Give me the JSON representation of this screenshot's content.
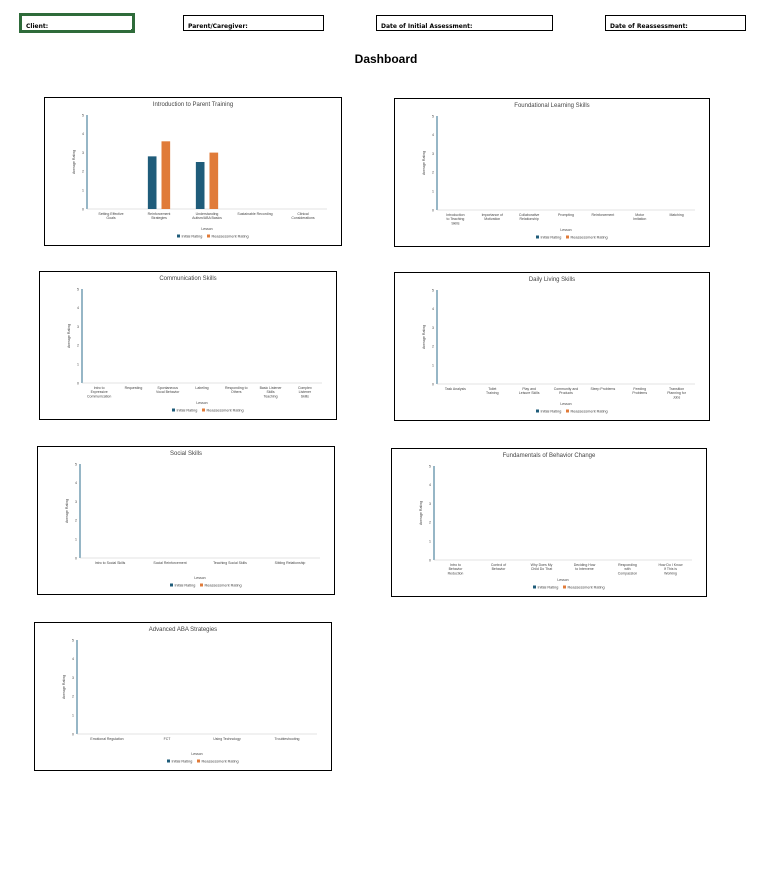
{
  "header": {
    "client_label": "Client:",
    "parent_label": "Parent/Caregiver:",
    "initial_label": "Date of Initial Assessment:",
    "reassess_label": "Date of Reassessment:"
  },
  "page_title": "Dashboard",
  "colors": {
    "initial": "#1f5c7a",
    "reassessment": "#e07b39",
    "axis": "#2d6d8c",
    "selected_cell": "#2e6b3a"
  },
  "legend": {
    "initial": "Initial Rating",
    "reassessment": "Reassessment Rating"
  },
  "chart_data": [
    {
      "type": "bar",
      "title": "Introduction to Parent Training",
      "xlabel": "Lesson",
      "ylabel": "Average Rating",
      "ylim": [
        0,
        5
      ],
      "yticks": [
        "0",
        "1",
        "2",
        "3",
        "4",
        "5"
      ],
      "categories": [
        "Setting Effective Goals",
        "Reinforcement Strategies",
        "Understanding Autism/ABA Basics",
        "Sustainable Recording",
        "Clinical Considerations"
      ],
      "series": [
        {
          "name": "Initial Rating",
          "values": [
            null,
            2.8,
            2.5,
            null,
            null
          ]
        },
        {
          "name": "Reassessment Rating",
          "values": [
            null,
            3.6,
            3.0,
            null,
            null
          ]
        }
      ]
    },
    {
      "type": "bar",
      "title": "Foundational Learning Skills",
      "xlabel": "Lesson",
      "ylabel": "Average Rating",
      "ylim": [
        0,
        5
      ],
      "yticks": [
        "0",
        "1",
        "2",
        "3",
        "4",
        "5"
      ],
      "categories": [
        "Introduction to Teaching Skills",
        "Importance of Motivation",
        "Collaborative Relationship",
        "Prompting",
        "Reinforcement",
        "Motor Imitation",
        "Matching"
      ],
      "series": [
        {
          "name": "Initial Rating",
          "values": [
            null,
            null,
            null,
            null,
            null,
            null,
            null
          ]
        },
        {
          "name": "Reassessment Rating",
          "values": [
            null,
            null,
            null,
            null,
            null,
            null,
            null
          ]
        }
      ]
    },
    {
      "type": "bar",
      "title": "Communication Skills",
      "xlabel": "Lesson",
      "ylabel": "Average Rating",
      "ylim": [
        0,
        5
      ],
      "yticks": [
        "0",
        "1",
        "2",
        "3",
        "4",
        "5"
      ],
      "categories": [
        "Intro to Expressive Communication",
        "Requesting",
        "Spontaneous Vocal Behavior",
        "Labeling",
        "Responding to Others",
        "Basic Listener Skills Teaching",
        "Complex Listener Skills"
      ],
      "series": [
        {
          "name": "Initial Rating",
          "values": [
            null,
            null,
            null,
            null,
            null,
            null,
            null
          ]
        },
        {
          "name": "Reassessment Rating",
          "values": [
            null,
            null,
            null,
            null,
            null,
            null,
            null
          ]
        }
      ]
    },
    {
      "type": "bar",
      "title": "Daily Living Skills",
      "xlabel": "Lesson",
      "ylabel": "Average Rating",
      "ylim": [
        0,
        5
      ],
      "yticks": [
        "0",
        "1",
        "2",
        "3",
        "4",
        "5"
      ],
      "categories": [
        "Task Analysis",
        "Toilet Training",
        "Play and Leisure Skills",
        "Community and Products",
        "Sleep Problems",
        "Feeding Problems",
        "Transition Planning for Jobs"
      ],
      "series": [
        {
          "name": "Initial Rating",
          "values": [
            null,
            null,
            null,
            null,
            null,
            null,
            null
          ]
        },
        {
          "name": "Reassessment Rating",
          "values": [
            null,
            null,
            null,
            null,
            null,
            null,
            null
          ]
        }
      ]
    },
    {
      "type": "bar",
      "title": "Social Skills",
      "xlabel": "Lesson",
      "ylabel": "Average Rating",
      "ylim": [
        0,
        5
      ],
      "yticks": [
        "0",
        "1",
        "2",
        "3",
        "4",
        "5"
      ],
      "categories": [
        "Intro to Social Skills",
        "Social Reinforcement",
        "Teaching Social Skills",
        "Sibling Relationship"
      ],
      "series": [
        {
          "name": "Initial Rating",
          "values": [
            null,
            null,
            null,
            null
          ]
        },
        {
          "name": "Reassessment Rating",
          "values": [
            null,
            null,
            null,
            null
          ]
        }
      ]
    },
    {
      "type": "bar",
      "title": "Fundamentals of Behavior Change",
      "xlabel": "Lesson",
      "ylabel": "Average Rating",
      "ylim": [
        0,
        5
      ],
      "yticks": [
        "0",
        "1",
        "2",
        "3",
        "4",
        "5"
      ],
      "categories": [
        "Intro to Behavior Reduction",
        "Control of Behavior",
        "Why Does My Child Do That",
        "Deciding How to Intervene",
        "Responding with Compassion",
        "How Do I Know If This is Working"
      ],
      "series": [
        {
          "name": "Initial Rating",
          "values": [
            null,
            null,
            null,
            null,
            null,
            null
          ]
        },
        {
          "name": "Reassessment Rating",
          "values": [
            null,
            null,
            null,
            null,
            null,
            null
          ]
        }
      ]
    },
    {
      "type": "bar",
      "title": "Advanced ABA Strategies",
      "xlabel": "Lesson",
      "ylabel": "Average Rating",
      "ylim": [
        0,
        5
      ],
      "yticks": [
        "0",
        "1",
        "2",
        "3",
        "4",
        "5"
      ],
      "categories": [
        "Emotional Regulation",
        "FCT",
        "Using Technology",
        "Troubleshooting"
      ],
      "series": [
        {
          "name": "Initial Rating",
          "values": [
            null,
            null,
            null,
            null
          ]
        },
        {
          "name": "Reassessment Rating",
          "values": [
            null,
            null,
            null,
            null
          ]
        }
      ]
    }
  ]
}
